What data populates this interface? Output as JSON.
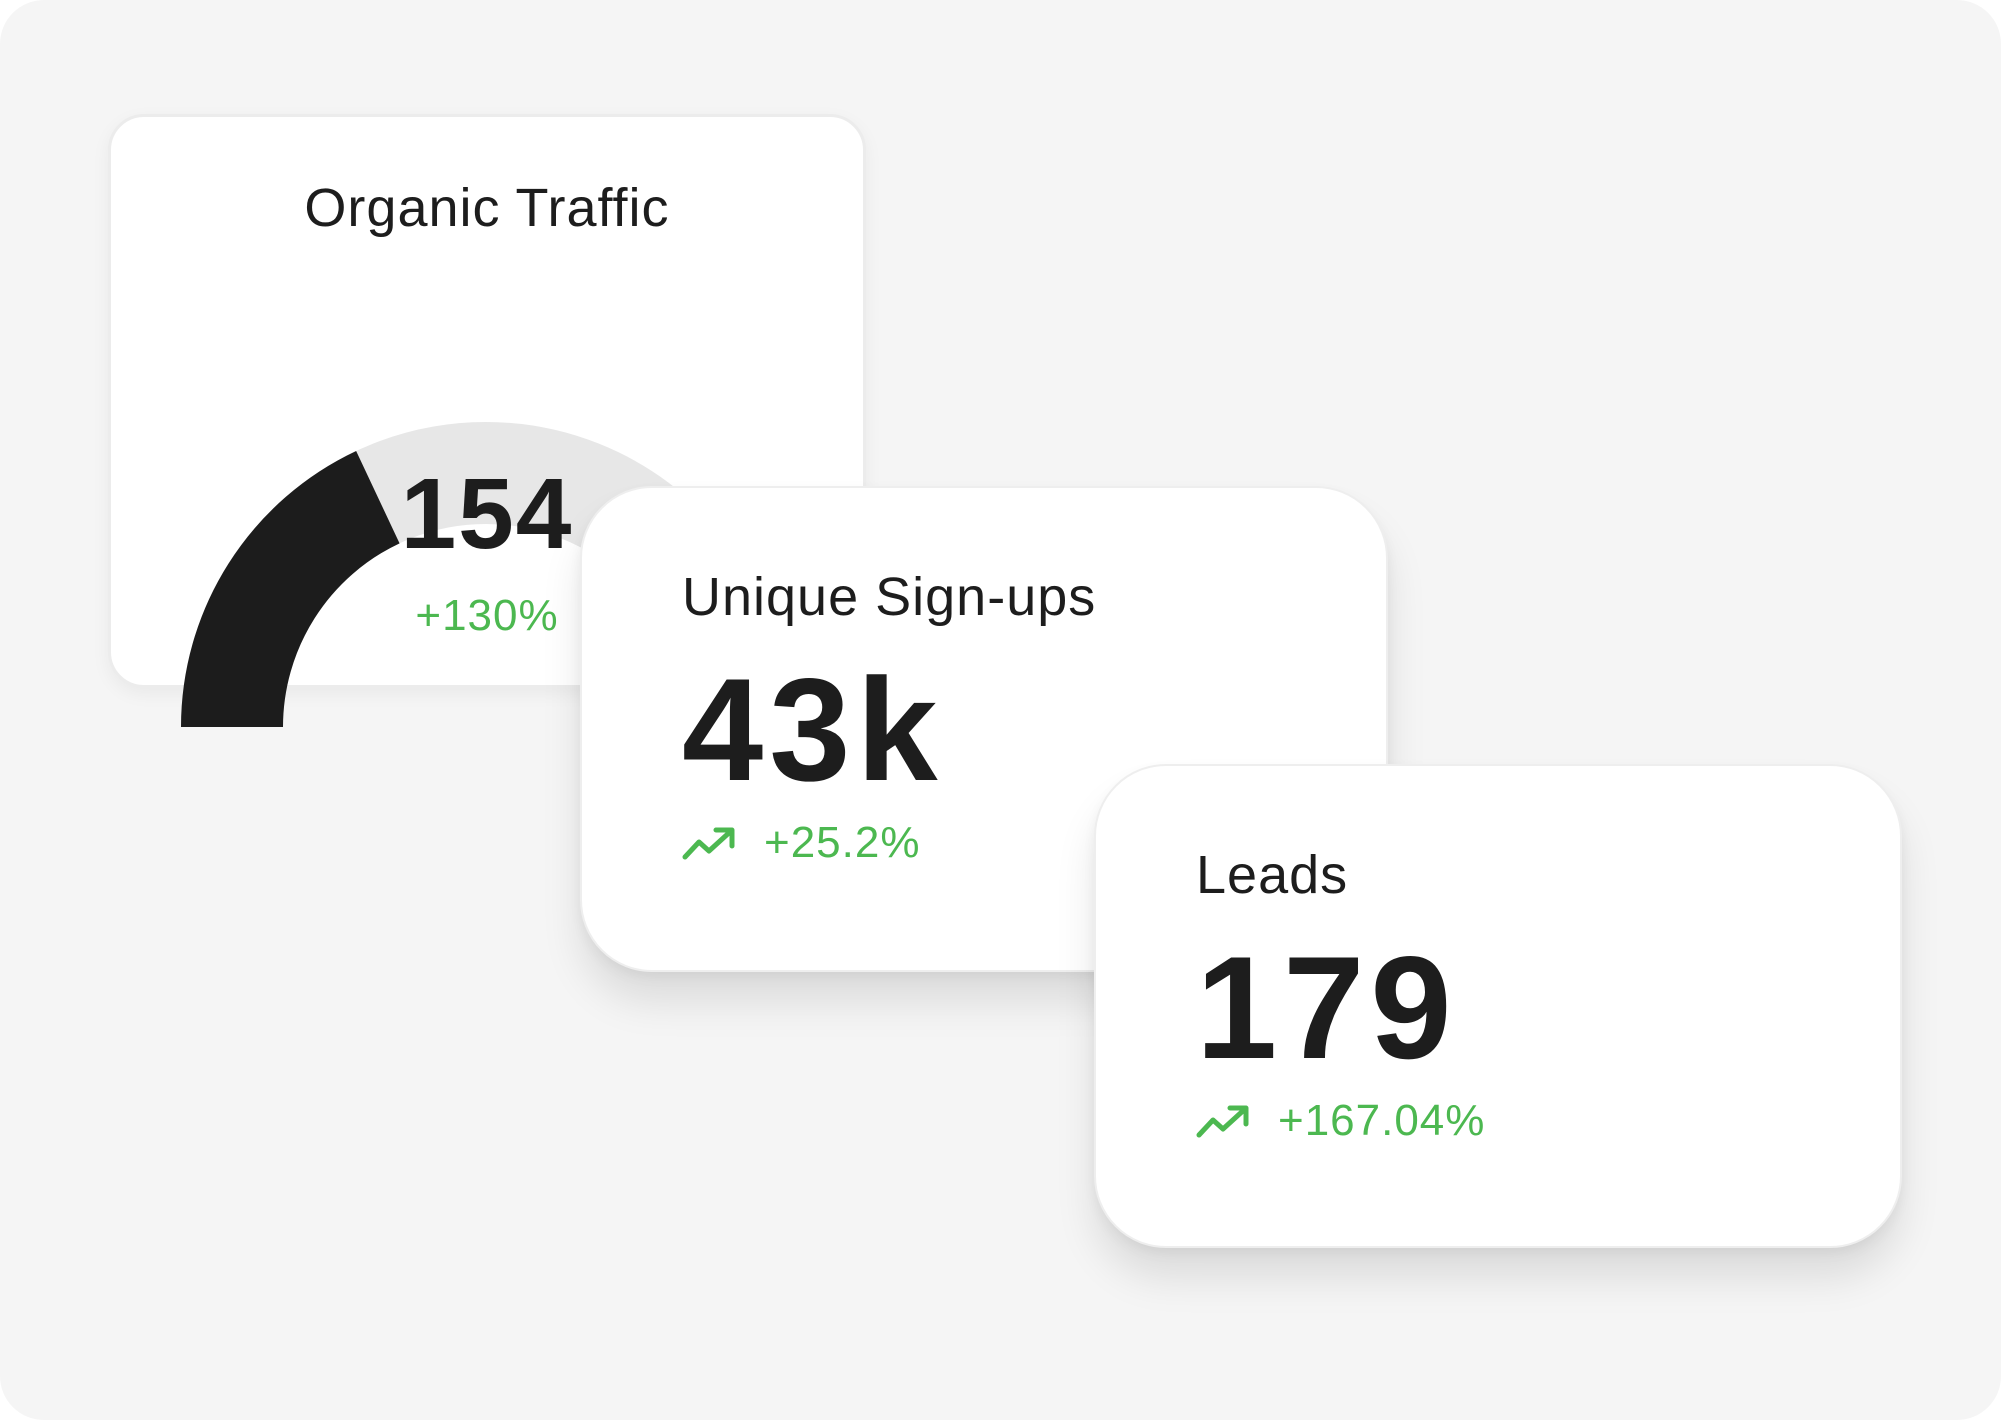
{
  "cards": {
    "organic_traffic": {
      "title": "Organic Traffic",
      "value": "154",
      "change": "+130%",
      "gauge_fraction": 0.36,
      "gauge_color": "#1c1c1c",
      "track_color": "#e7e7e7"
    },
    "unique_signups": {
      "title": "Unique Sign-ups",
      "value": "43k",
      "change": "+25.2%",
      "icon": "trending-up-icon"
    },
    "leads": {
      "title": "Leads",
      "value": "179",
      "change": "+167.04%",
      "icon": "trending-up-icon"
    }
  },
  "colors": {
    "background": "#f5f5f5",
    "card": "#ffffff",
    "text": "#1d1d1d",
    "positive": "#4cb850"
  }
}
